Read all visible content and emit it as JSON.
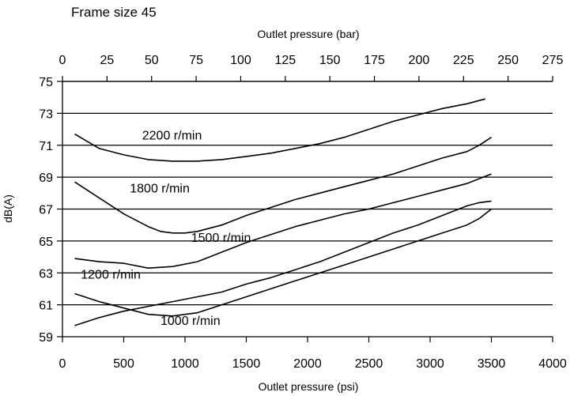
{
  "chart_data": {
    "type": "line",
    "title": "Frame size 45",
    "xlabel": "Outlet pressure (psi)",
    "x2label": "Outlet pressure (bar)",
    "ylabel": "dB(A)",
    "xlim": [
      0,
      4000
    ],
    "x2lim": [
      0,
      275
    ],
    "ylim": [
      59,
      75
    ],
    "x_ticks": [
      0,
      500,
      1000,
      1500,
      2000,
      2500,
      3000,
      3500,
      4000
    ],
    "x2_ticks": [
      0,
      25,
      50,
      75,
      100,
      125,
      150,
      175,
      200,
      225,
      250,
      275
    ],
    "y_ticks": [
      59,
      61,
      63,
      65,
      67,
      69,
      71,
      73,
      75
    ],
    "grid": "horizontal",
    "legend": "none",
    "line_color": "#000000",
    "series": [
      {
        "name": "2200 r/min",
        "x": [
          100,
          300,
          500,
          700,
          900,
          1100,
          1300,
          1500,
          1700,
          1900,
          2100,
          2300,
          2500,
          2700,
          2900,
          3100,
          3300,
          3400,
          3450
        ],
        "y": [
          71.7,
          70.8,
          70.4,
          70.1,
          70.0,
          70.0,
          70.1,
          70.3,
          70.5,
          70.8,
          71.1,
          71.5,
          72.0,
          72.5,
          72.9,
          73.3,
          73.6,
          73.8,
          73.9
        ]
      },
      {
        "name": "1800 r/min",
        "x": [
          100,
          300,
          500,
          700,
          800,
          900,
          1000,
          1100,
          1300,
          1500,
          1700,
          1900,
          2100,
          2300,
          2500,
          2700,
          2900,
          3100,
          3300,
          3400,
          3500
        ],
        "y": [
          68.7,
          67.7,
          66.7,
          65.9,
          65.6,
          65.5,
          65.5,
          65.6,
          66.0,
          66.6,
          67.1,
          67.6,
          68.0,
          68.4,
          68.8,
          69.2,
          69.7,
          70.2,
          70.6,
          71.0,
          71.5
        ]
      },
      {
        "name": "1500 r/min",
        "x": [
          100,
          300,
          500,
          700,
          900,
          1100,
          1300,
          1500,
          1700,
          1900,
          2100,
          2300,
          2500,
          2700,
          2900,
          3100,
          3300,
          3400,
          3500
        ],
        "y": [
          63.9,
          63.7,
          63.6,
          63.3,
          63.4,
          63.7,
          64.3,
          64.9,
          65.4,
          65.9,
          66.3,
          66.7,
          67.0,
          67.4,
          67.8,
          68.2,
          68.6,
          68.9,
          69.2
        ]
      },
      {
        "name": "1200 r/min",
        "x": [
          100,
          300,
          500,
          700,
          900,
          1100,
          1300,
          1500,
          1700,
          1900,
          2100,
          2300,
          2500,
          2700,
          2900,
          3100,
          3300,
          3400,
          3500
        ],
        "y": [
          59.7,
          60.2,
          60.6,
          60.9,
          61.2,
          61.5,
          61.8,
          62.3,
          62.7,
          63.2,
          63.7,
          64.3,
          64.9,
          65.5,
          66.0,
          66.6,
          67.2,
          67.4,
          67.5
        ]
      },
      {
        "name": "1000 r/min",
        "x": [
          100,
          300,
          500,
          700,
          900,
          1100,
          1300,
          1500,
          1700,
          1900,
          2100,
          2300,
          2500,
          2700,
          2900,
          3100,
          3300,
          3400,
          3500
        ],
        "y": [
          61.7,
          61.2,
          60.8,
          60.4,
          60.3,
          60.5,
          61.0,
          61.5,
          62.0,
          62.5,
          63.0,
          63.5,
          64.0,
          64.5,
          65.0,
          65.5,
          66.0,
          66.4,
          67.0
        ]
      }
    ],
    "annotations": [
      {
        "text": "2200 r/min",
        "x": 650,
        "y": 71.35
      },
      {
        "text": "1800 r/min",
        "x": 550,
        "y": 68.05
      },
      {
        "text": "1500 r/min",
        "x": 1050,
        "y": 64.95
      },
      {
        "text": "1200 r/min",
        "x": 150,
        "y": 62.65
      },
      {
        "text": "1000 r/min",
        "x": 800,
        "y": 59.75
      }
    ]
  }
}
